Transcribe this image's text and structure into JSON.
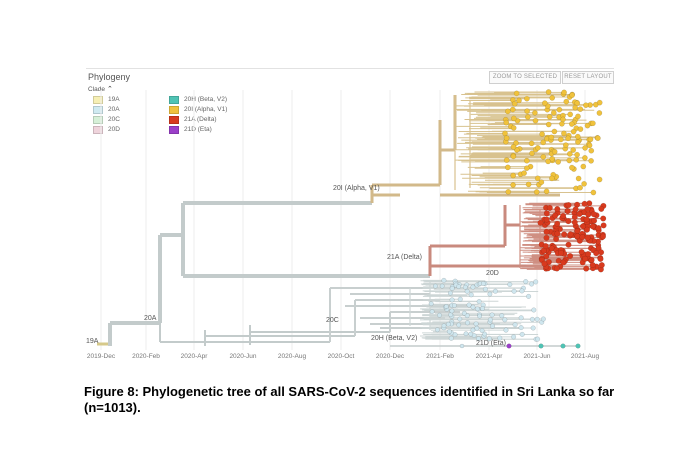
{
  "panel": {
    "title": "Phylogeny",
    "zoom_button": "ZOOM TO SELECTED",
    "reset_button": "RESET LAYOUT"
  },
  "legend": {
    "title": "Clade",
    "items": [
      {
        "label": "19A",
        "color": "#f6efb4"
      },
      {
        "label": "20A",
        "color": "#cfeaf1"
      },
      {
        "label": "20C",
        "color": "#d6f0d8"
      },
      {
        "label": "20D",
        "color": "#efd4dc"
      },
      {
        "label": "20H (Beta, V2)",
        "color": "#4fc3b4"
      },
      {
        "label": "20I (Alpha, V1)",
        "color": "#f0c23c"
      },
      {
        "label": "21A (Delta)",
        "color": "#d83a1e"
      },
      {
        "label": "21D (Eta)",
        "color": "#9b3fc9"
      }
    ]
  },
  "axis": {
    "ticks": [
      "2019-Dec",
      "2020-Feb",
      "2020-Apr",
      "2020-Jun",
      "2020-Aug",
      "2020-Oct",
      "2020-Dec",
      "2021-Feb",
      "2021-Apr",
      "2021-Jun",
      "2021-Aug"
    ]
  },
  "branch_labels": {
    "l19a": "19A",
    "l20a": "20A",
    "l20c": "20C",
    "l20i": "20I (Alpha, V1)",
    "l21a": "21A (Delta)",
    "l20h": "20H (Beta, V2)",
    "l21d": "21D (Eta)",
    "l20d": "20D"
  },
  "colors": {
    "backbone": "#c3cbcb",
    "alpha_branch": "#d2b98a",
    "alpha_tip": "#f0c23c",
    "delta_branch": "#c98a7e",
    "delta_tip": "#d83a1e",
    "tip_light": "#cfe6ee",
    "beta_tip": "#4fc3b4",
    "eta_tip": "#9b3fc9"
  },
  "caption": {
    "line1": "Figure 8: Phylogenetic tree of all SARS-CoV-2 sequences identified in Sri Lanka so far",
    "line2": "(n=1013)."
  }
}
